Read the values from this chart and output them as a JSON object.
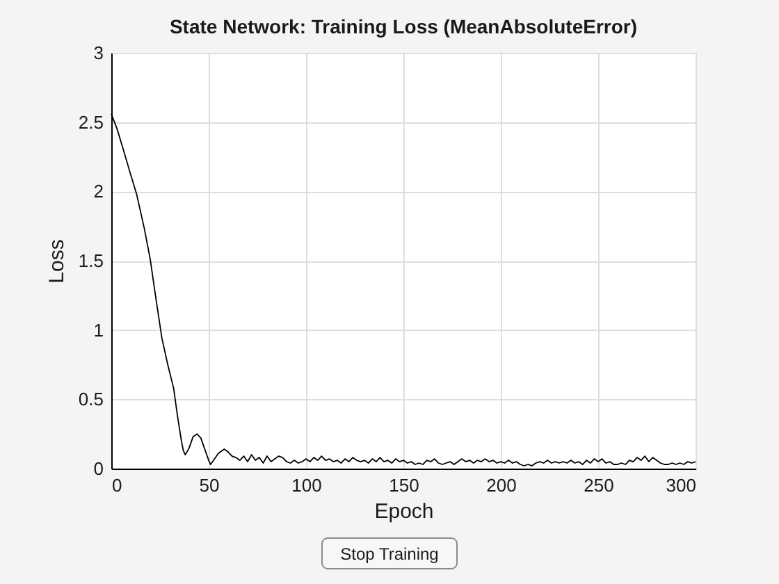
{
  "chart_data": {
    "type": "line",
    "title": "State Network: Training Loss (MeanAbsoluteError)",
    "xlabel": "Epoch",
    "ylabel": "Loss",
    "xlim": [
      0,
      300
    ],
    "xticks": [
      0,
      50,
      100,
      150,
      200,
      250,
      300
    ],
    "ylim": [
      0,
      3
    ],
    "yticks": [
      0,
      0.5,
      1,
      1.5,
      2,
      2.5,
      3
    ],
    "grid": true,
    "x": [
      0,
      3,
      6,
      10,
      13,
      17,
      20,
      23,
      26,
      29,
      32,
      34,
      36,
      37,
      38,
      40,
      42,
      44,
      46,
      48,
      50,
      51,
      53,
      55,
      58,
      60,
      62,
      64,
      66,
      68,
      70,
      72,
      74,
      76,
      78,
      80,
      82,
      84,
      86,
      88,
      90,
      92,
      94,
      96,
      98,
      100,
      102,
      104,
      106,
      108,
      110,
      112,
      114,
      116,
      118,
      120,
      122,
      124,
      126,
      128,
      130,
      132,
      134,
      136,
      138,
      140,
      142,
      144,
      146,
      148,
      150,
      152,
      154,
      156,
      158,
      160,
      162,
      164,
      166,
      168,
      170,
      172,
      174,
      176,
      178,
      180,
      182,
      184,
      186,
      188,
      190,
      192,
      194,
      196,
      198,
      200,
      202,
      204,
      206,
      208,
      210,
      212,
      214,
      216,
      218,
      220,
      222,
      224,
      226,
      228,
      230,
      232,
      234,
      236,
      238,
      240,
      242,
      244,
      246,
      248,
      250,
      252,
      254,
      256,
      258,
      260,
      262,
      264,
      266,
      268,
      270,
      272,
      274,
      276,
      278,
      280,
      282,
      284,
      286,
      288,
      290,
      292,
      294,
      296,
      298,
      300
    ],
    "series": [
      {
        "color": "#000000",
        "values": [
          2.56,
          2.45,
          2.31,
          2.12,
          1.98,
          1.73,
          1.51,
          1.22,
          0.94,
          0.75,
          0.58,
          0.38,
          0.2,
          0.13,
          0.1,
          0.15,
          0.23,
          0.25,
          0.22,
          0.14,
          0.06,
          0.03,
          0.07,
          0.11,
          0.14,
          0.12,
          0.09,
          0.08,
          0.06,
          0.09,
          0.05,
          0.1,
          0.06,
          0.08,
          0.04,
          0.09,
          0.05,
          0.07,
          0.09,
          0.08,
          0.05,
          0.04,
          0.06,
          0.04,
          0.05,
          0.07,
          0.05,
          0.08,
          0.06,
          0.09,
          0.06,
          0.07,
          0.05,
          0.06,
          0.04,
          0.07,
          0.05,
          0.08,
          0.06,
          0.05,
          0.06,
          0.04,
          0.07,
          0.05,
          0.08,
          0.05,
          0.06,
          0.04,
          0.07,
          0.05,
          0.06,
          0.04,
          0.05,
          0.03,
          0.04,
          0.03,
          0.06,
          0.05,
          0.07,
          0.04,
          0.03,
          0.04,
          0.05,
          0.03,
          0.05,
          0.07,
          0.05,
          0.06,
          0.04,
          0.06,
          0.05,
          0.07,
          0.05,
          0.06,
          0.04,
          0.05,
          0.04,
          0.06,
          0.04,
          0.05,
          0.03,
          0.02,
          0.03,
          0.02,
          0.04,
          0.05,
          0.04,
          0.06,
          0.04,
          0.05,
          0.04,
          0.05,
          0.04,
          0.06,
          0.04,
          0.05,
          0.03,
          0.06,
          0.04,
          0.07,
          0.05,
          0.07,
          0.04,
          0.05,
          0.03,
          0.03,
          0.04,
          0.03,
          0.06,
          0.05,
          0.08,
          0.06,
          0.09,
          0.05,
          0.08,
          0.06,
          0.04,
          0.03,
          0.03,
          0.04,
          0.03,
          0.04,
          0.03,
          0.05,
          0.04,
          0.05
        ]
      }
    ],
    "annotations": [
      "Stop Training"
    ]
  }
}
